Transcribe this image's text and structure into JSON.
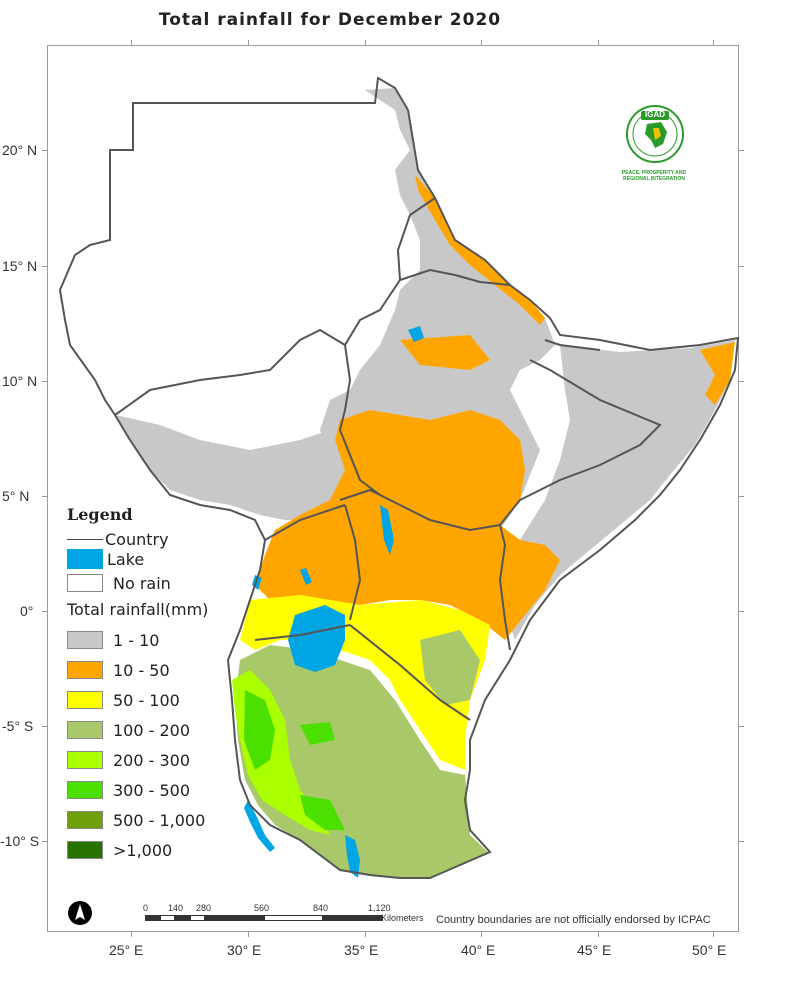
{
  "title": "Total rainfall for December 2020",
  "lat_labels": [
    "20° N",
    "15° N",
    "10° N",
    "5° N",
    "0°",
    "-5° S",
    "-10° S"
  ],
  "lon_labels": [
    "25° E",
    "30° E",
    "35° E",
    "40° E",
    "45° E",
    "50° E"
  ],
  "legend": {
    "heading": "Legend",
    "country": "Country",
    "lake": "Lake",
    "no_rain": "No rain",
    "rain_title": "Total rainfall(mm)",
    "classes": [
      {
        "label": "1 - 10",
        "color": "#c8c8c8"
      },
      {
        "label": "10 - 50",
        "color": "#ffa500"
      },
      {
        "label": "50 - 100",
        "color": "#ffff00"
      },
      {
        "label": "100 - 200",
        "color": "#a8c86a"
      },
      {
        "label": "200 - 300",
        "color": "#aaff00"
      },
      {
        "label": "300 - 500",
        "color": "#4ce000"
      },
      {
        "label": "500 - 1,000",
        "color": "#6fa00a"
      },
      {
        "label": ">1,000",
        "color": "#267300"
      }
    ],
    "lake_color": "#00a5e3"
  },
  "scale": {
    "ticks": [
      "0",
      "140",
      "280",
      "560",
      "840",
      "1,120"
    ],
    "unit": "Kilometers"
  },
  "disclaimer": "Country boundaries are not officially endorsed by ICPAC",
  "logo": {
    "text": "IGAD",
    "caption_line1": "PEACE, PROSPERITY AND",
    "caption_line2": "REGIONAL INTEGRATION"
  }
}
